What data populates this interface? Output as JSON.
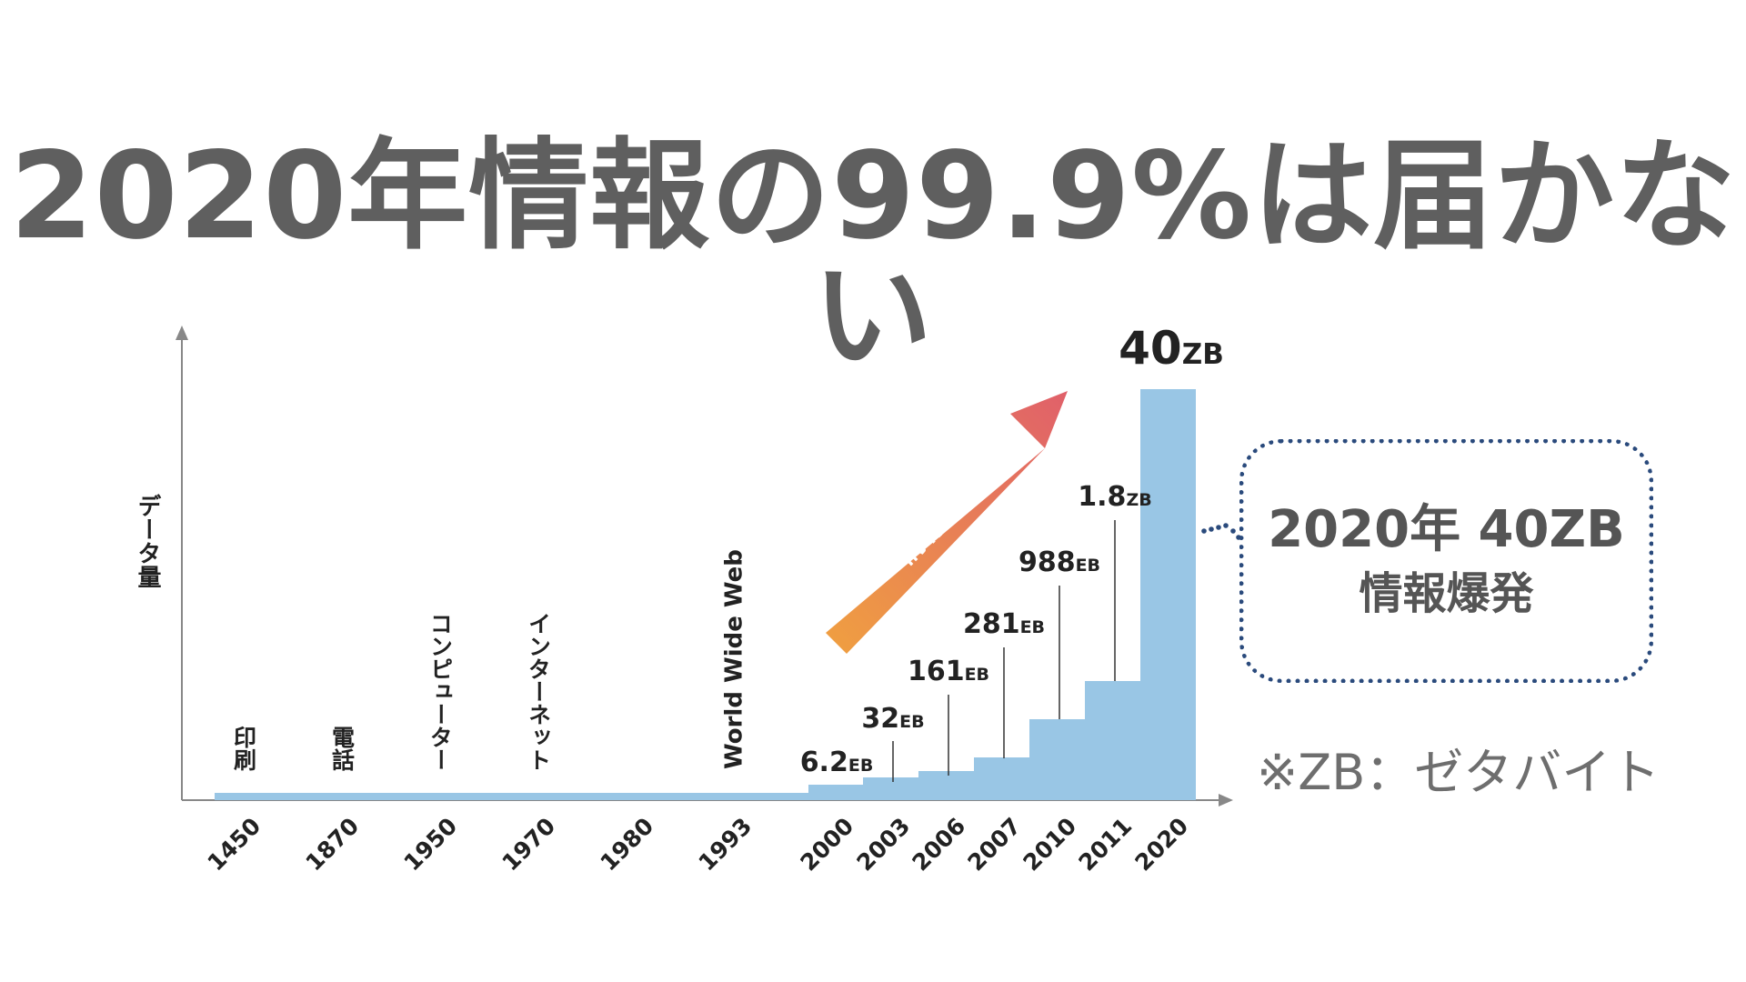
{
  "title": "2020年情報の99.9%は届かない",
  "callout": {
    "line1": "2020年 40ZB",
    "line2": "情報爆発"
  },
  "note": "※ZB：ゼタバイト",
  "arrow_label": "情報爆発",
  "colors": {
    "bar": "#99c6e5",
    "title": "#5f5f5f",
    "axis": "#888888",
    "callout_border": "#2a4a7c",
    "arrow_start": "#f0a040",
    "arrow_end": "#e0606a"
  },
  "chart_data": {
    "type": "bar",
    "ylabel": "データ量",
    "xlabel": "",
    "categories": [
      "1450",
      "1870",
      "1950",
      "1970",
      "1980",
      "1993",
      "2000",
      "2003",
      "2006",
      "2007",
      "2010",
      "2011",
      "2020"
    ],
    "milestones": [
      {
        "category": "1450",
        "label": "印刷"
      },
      {
        "category": "1870",
        "label": "電話"
      },
      {
        "category": "1950",
        "label": "コンピューター"
      },
      {
        "category": "1970",
        "label": "インターネット"
      },
      {
        "category": "1993",
        "label": "World Wide Web"
      }
    ],
    "data_labels": [
      {
        "category": "2000",
        "value": "6.2",
        "unit": "EB"
      },
      {
        "category": "2003",
        "value": "32",
        "unit": "EB"
      },
      {
        "category": "2006",
        "value": "161",
        "unit": "EB"
      },
      {
        "category": "2007",
        "value": "281",
        "unit": "EB"
      },
      {
        "category": "2010",
        "value": "988",
        "unit": "EB"
      },
      {
        "category": "2011",
        "value": "1.8",
        "unit": "ZB"
      },
      {
        "category": "2020",
        "value": "40",
        "unit": "ZB"
      }
    ]
  }
}
